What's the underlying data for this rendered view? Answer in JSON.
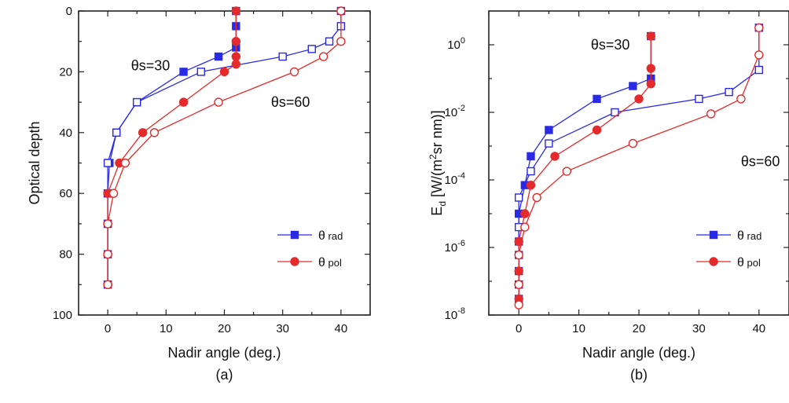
{
  "colors": {
    "rad": "#2a2ae6",
    "pol": "#e42a2a"
  },
  "chart_data": [
    {
      "type": "line",
      "panel_label": "(a)",
      "xlabel": "Nadir angle (deg.)",
      "ylabel": "Optical depth",
      "xlim": [
        -5,
        45
      ],
      "ylim": [
        100,
        0
      ],
      "yscale": "linear",
      "y_inverted": true,
      "xticks": [
        0,
        10,
        20,
        30,
        40
      ],
      "yticks": [
        0,
        20,
        40,
        60,
        80,
        100
      ],
      "xtick_labels": [
        "0",
        "10",
        "20",
        "30",
        "40"
      ],
      "ytick_labels": [
        "0",
        "20",
        "40",
        "60",
        "80",
        "100"
      ],
      "annotations": [
        {
          "base": "θs=30",
          "near": [
            4,
            18
          ]
        },
        {
          "base": "θs=60",
          "near": [
            28,
            30
          ]
        }
      ],
      "legend": {
        "placement": "bottom-right",
        "entries": [
          {
            "symbol": "θ",
            "sub": "rad",
            "key": "rad"
          },
          {
            "symbol": "θ",
            "sub": "pol",
            "key": "pol"
          }
        ]
      },
      "series": [
        {
          "theta_s": 30,
          "angle": "rad",
          "marker": "square",
          "filled": true,
          "x": [
            22,
            22,
            22,
            19,
            13,
            5,
            1.5,
            0.3,
            0,
            0,
            0,
            0
          ],
          "y": [
            0,
            5,
            12,
            15,
            20,
            30,
            40,
            50,
            60,
            70,
            80,
            90
          ]
        },
        {
          "theta_s": 60,
          "angle": "rad",
          "marker": "square",
          "filled": false,
          "x": [
            40,
            40,
            38,
            35,
            30,
            16,
            5,
            1.5,
            0,
            0,
            0,
            0
          ],
          "y": [
            0,
            5,
            10,
            12.5,
            15,
            20,
            30,
            40,
            50,
            60,
            70,
            90
          ]
        },
        {
          "theta_s": 30,
          "angle": "pol",
          "marker": "circle",
          "filled": true,
          "x": [
            22,
            22,
            22,
            22,
            20,
            13,
            6,
            2,
            0,
            0,
            0,
            0
          ],
          "y": [
            0,
            10,
            15,
            17.5,
            20,
            30,
            40,
            50,
            60,
            70,
            80,
            90
          ]
        },
        {
          "theta_s": 60,
          "angle": "pol",
          "marker": "circle",
          "filled": false,
          "x": [
            40,
            40,
            37,
            32,
            19,
            8,
            3,
            1,
            0,
            0,
            0,
            0
          ],
          "y": [
            0,
            10,
            15,
            20,
            30,
            40,
            50,
            60,
            70,
            80,
            90,
            90
          ]
        }
      ]
    },
    {
      "type": "line",
      "panel_label": "(b)",
      "xlabel": "Nadir angle (deg.)",
      "ylabel_main": "E",
      "ylabel_sub": "d",
      "ylabel_units_pre": " [W/(m",
      "ylabel_units_sup": "2",
      "ylabel_units_post": "sr nm)]",
      "xlim": [
        -5,
        45
      ],
      "ylim": [
        1e-08,
        10
      ],
      "yscale": "log",
      "xticks": [
        0,
        10,
        20,
        30,
        40
      ],
      "xtick_labels": [
        "0",
        "10",
        "20",
        "30",
        "40"
      ],
      "yticks_exp": [
        -8,
        -6,
        -4,
        -2,
        0
      ],
      "ytick_base": "10",
      "ytick_exp_labels": [
        "-8",
        "-6",
        "-4",
        "-2",
        "0"
      ],
      "annotations": [
        {
          "base": "θs=30",
          "near": [
            12,
            1
          ]
        },
        {
          "base": "θs=60",
          "near": [
            37,
            0.00035
          ]
        }
      ],
      "legend": {
        "placement": "bottom-right",
        "entries": [
          {
            "symbol": "θ",
            "sub": "rad",
            "key": "rad"
          },
          {
            "symbol": "θ",
            "sub": "pol",
            "key": "pol"
          }
        ]
      },
      "series": [
        {
          "theta_s": 30,
          "angle": "rad",
          "marker": "square",
          "filled": true,
          "x": [
            22,
            22,
            19,
            13,
            5,
            2,
            1,
            0,
            0,
            0,
            0,
            0
          ],
          "y": [
            1.8,
            0.1,
            0.06,
            0.025,
            0.003,
            0.0005,
            7e-05,
            1e-05,
            1.5e-06,
            2e-07,
            8e-08,
            3e-08
          ]
        },
        {
          "theta_s": 60,
          "angle": "rad",
          "marker": "square",
          "filled": false,
          "x": [
            40,
            40,
            35,
            30,
            16,
            5,
            2,
            0,
            0,
            0,
            0
          ],
          "y": [
            3.2,
            0.18,
            0.04,
            0.025,
            0.01,
            0.0012,
            0.00018,
            3e-05,
            4e-06,
            6e-07,
            8e-08
          ]
        },
        {
          "theta_s": 30,
          "angle": "pol",
          "marker": "circle",
          "filled": true,
          "x": [
            22,
            22,
            22,
            20,
            13,
            6,
            2,
            1,
            0,
            0,
            0,
            0
          ],
          "y": [
            1.8,
            0.2,
            0.07,
            0.025,
            0.003,
            0.0005,
            7e-05,
            1e-05,
            1.5e-06,
            2e-07,
            8e-08,
            3e-08
          ]
        },
        {
          "theta_s": 60,
          "angle": "pol",
          "marker": "circle",
          "filled": false,
          "x": [
            40,
            40,
            37,
            32,
            19,
            8,
            3,
            1,
            0,
            0,
            0
          ],
          "y": [
            3.2,
            0.5,
            0.025,
            0.009,
            0.0012,
            0.00018,
            3e-05,
            4e-06,
            6e-07,
            8e-08,
            2e-08
          ]
        }
      ]
    }
  ]
}
